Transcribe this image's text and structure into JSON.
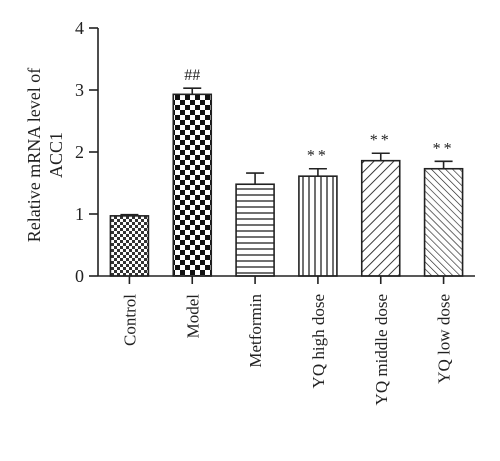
{
  "chart_data": {
    "type": "bar",
    "ylabel_lines": [
      "Relative mRNA level of",
      "ACC1"
    ],
    "xlabel": "",
    "ylim": [
      0,
      4
    ],
    "yticks": [
      0,
      1,
      2,
      3,
      4
    ],
    "categories": [
      "Control",
      "Model",
      "Metformin",
      "YQ high dose",
      "YQ middle dose",
      "YQ low dose"
    ],
    "values": [
      0.97,
      2.93,
      1.48,
      1.61,
      1.86,
      1.73
    ],
    "errors": [
      0.02,
      0.1,
      0.18,
      0.12,
      0.12,
      0.12
    ],
    "annotations": [
      "",
      "##",
      "",
      "**",
      "**",
      "**"
    ],
    "patterns": [
      "dense-checker",
      "checker",
      "horizontal-lines",
      "vertical-lines",
      "diagonal-lines",
      "diagonal-lines-dense"
    ],
    "grid": false,
    "legend": "none"
  },
  "colors": {
    "bar_stroke": "#222222",
    "pattern": "#222222",
    "background": "#ffffff"
  }
}
